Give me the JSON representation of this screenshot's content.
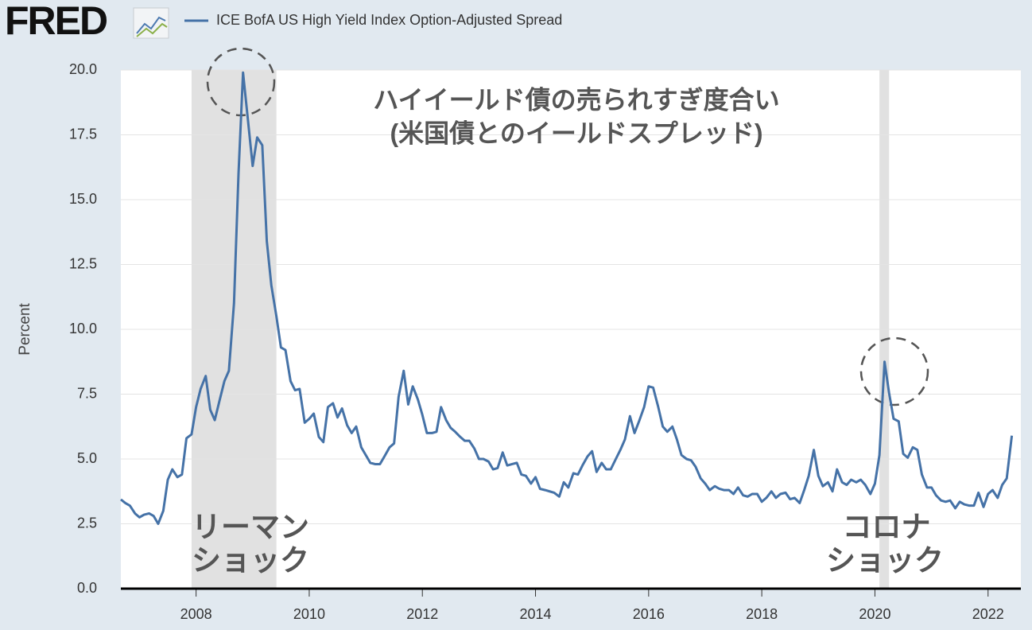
{
  "logo": "FRED",
  "chart_data": {
    "type": "line",
    "legend_position": "top-left",
    "ylabel": "Percent",
    "annotations": [
      "ハイイールド債の売られすぎ度合い",
      "(米国債とのイールドスプレッド)",
      "リーマン",
      "ショック",
      "コロナ",
      "ショック"
    ],
    "shaded_ranges": [
      [
        2007.92,
        2009.42
      ],
      [
        2020.08,
        2020.25
      ]
    ],
    "shade_color": "#e1e1e1",
    "grid": true,
    "xlim": [
      2006.67,
      2022.58
    ],
    "xticks": [
      2008,
      2010,
      2012,
      2014,
      2016,
      2018,
      2020,
      2022
    ],
    "ylim": [
      0,
      20
    ],
    "yticks": [
      {
        "value": 0,
        "label": "0.0"
      },
      2.5,
      {
        "value": 5,
        "label": "5.0"
      },
      7.5,
      {
        "value": 10,
        "label": "10.0"
      },
      12.5,
      {
        "value": 15,
        "label": "15.0"
      },
      17.5,
      {
        "value": 20,
        "label": "20.0"
      }
    ],
    "x": [
      2006.67,
      2006.75,
      2006.83,
      2006.92,
      2007,
      2007.08,
      2007.17,
      2007.25,
      2007.33,
      2007.42,
      2007.5,
      2007.58,
      2007.67,
      2007.75,
      2007.83,
      2007.92,
      2008,
      2008.08,
      2008.17,
      2008.25,
      2008.33,
      2008.42,
      2008.5,
      2008.58,
      2008.67,
      2008.75,
      2008.83,
      2008.92,
      2009,
      2009.08,
      2009.17,
      2009.25,
      2009.33,
      2009.42,
      2009.5,
      2009.58,
      2009.67,
      2009.75,
      2009.83,
      2009.92,
      2010,
      2010.08,
      2010.17,
      2010.25,
      2010.33,
      2010.42,
      2010.5,
      2010.58,
      2010.67,
      2010.75,
      2010.83,
      2010.92,
      2011,
      2011.08,
      2011.17,
      2011.25,
      2011.33,
      2011.42,
      2011.5,
      2011.58,
      2011.67,
      2011.75,
      2011.83,
      2011.92,
      2012,
      2012.08,
      2012.17,
      2012.25,
      2012.33,
      2012.42,
      2012.5,
      2012.58,
      2012.67,
      2012.75,
      2012.83,
      2012.92,
      2013,
      2013.08,
      2013.17,
      2013.25,
      2013.33,
      2013.42,
      2013.5,
      2013.58,
      2013.67,
      2013.75,
      2013.83,
      2013.92,
      2014,
      2014.08,
      2014.17,
      2014.25,
      2014.33,
      2014.42,
      2014.5,
      2014.58,
      2014.67,
      2014.75,
      2014.83,
      2014.92,
      2015,
      2015.08,
      2015.17,
      2015.25,
      2015.33,
      2015.42,
      2015.5,
      2015.58,
      2015.67,
      2015.75,
      2015.83,
      2015.92,
      2016,
      2016.08,
      2016.17,
      2016.25,
      2016.33,
      2016.42,
      2016.5,
      2016.58,
      2016.67,
      2016.75,
      2016.83,
      2016.92,
      2017,
      2017.08,
      2017.17,
      2017.25,
      2017.33,
      2017.42,
      2017.5,
      2017.58,
      2017.67,
      2017.75,
      2017.83,
      2017.92,
      2018,
      2018.08,
      2018.17,
      2018.25,
      2018.33,
      2018.42,
      2018.5,
      2018.58,
      2018.67,
      2018.75,
      2018.83,
      2018.92,
      2019,
      2019.08,
      2019.17,
      2019.25,
      2019.33,
      2019.42,
      2019.5,
      2019.58,
      2019.67,
      2019.75,
      2019.83,
      2019.92,
      2020,
      2020.08,
      2020.17,
      2020.25,
      2020.33,
      2020.42,
      2020.5,
      2020.58,
      2020.67,
      2020.75,
      2020.83,
      2020.92,
      2021,
      2021.08,
      2021.17,
      2021.25,
      2021.33,
      2021.42,
      2021.5,
      2021.58,
      2021.67,
      2021.75,
      2021.83,
      2021.92,
      2022,
      2022.08,
      2022.17,
      2022.25,
      2022.33,
      2022.42
    ],
    "series": [
      {
        "name": "ICE BofA US High Yield Index Option-Adjusted Spread",
        "color": "#4572a7",
        "values": [
          3.44,
          3.3,
          3.2,
          2.9,
          2.75,
          2.85,
          2.9,
          2.8,
          2.5,
          3.0,
          4.2,
          4.6,
          4.3,
          4.4,
          5.8,
          5.95,
          7.0,
          7.7,
          8.2,
          6.9,
          6.5,
          7.3,
          8.0,
          8.4,
          11.0,
          16.0,
          19.9,
          18.0,
          16.3,
          17.4,
          17.1,
          13.4,
          11.7,
          10.5,
          9.3,
          9.2,
          8.0,
          7.65,
          7.7,
          6.4,
          6.55,
          6.75,
          5.85,
          5.65,
          7.0,
          7.15,
          6.6,
          6.95,
          6.3,
          6.0,
          6.25,
          5.45,
          5.15,
          4.85,
          4.8,
          4.8,
          5.1,
          5.45,
          5.6,
          7.4,
          8.4,
          7.1,
          7.8,
          7.3,
          6.7,
          6.0,
          6.0,
          6.05,
          7.0,
          6.5,
          6.2,
          6.05,
          5.85,
          5.7,
          5.7,
          5.4,
          5.0,
          5.0,
          4.9,
          4.6,
          4.65,
          5.25,
          4.75,
          4.8,
          4.85,
          4.4,
          4.35,
          4.05,
          4.3,
          3.85,
          3.8,
          3.75,
          3.7,
          3.55,
          4.1,
          3.9,
          4.45,
          4.4,
          4.75,
          5.1,
          5.3,
          4.5,
          4.85,
          4.6,
          4.6,
          5.0,
          5.35,
          5.75,
          6.65,
          6.0,
          6.45,
          7.0,
          7.8,
          7.75,
          7.0,
          6.25,
          6.05,
          6.25,
          5.75,
          5.15,
          5.0,
          4.95,
          4.7,
          4.25,
          4.05,
          3.8,
          3.95,
          3.85,
          3.8,
          3.8,
          3.65,
          3.9,
          3.6,
          3.55,
          3.65,
          3.65,
          3.35,
          3.5,
          3.75,
          3.5,
          3.65,
          3.7,
          3.45,
          3.5,
          3.3,
          3.8,
          4.35,
          5.35,
          4.35,
          3.95,
          4.1,
          3.75,
          4.6,
          4.1,
          4.0,
          4.2,
          4.1,
          4.2,
          4.0,
          3.65,
          4.05,
          5.15,
          8.75,
          7.55,
          6.55,
          6.45,
          5.2,
          5.05,
          5.45,
          5.35,
          4.4,
          3.9,
          3.9,
          3.6,
          3.4,
          3.35,
          3.4,
          3.1,
          3.35,
          3.25,
          3.2,
          3.2,
          3.7,
          3.15,
          3.65,
          3.8,
          3.5,
          4.0,
          4.25,
          5.9
        ]
      }
    ]
  }
}
